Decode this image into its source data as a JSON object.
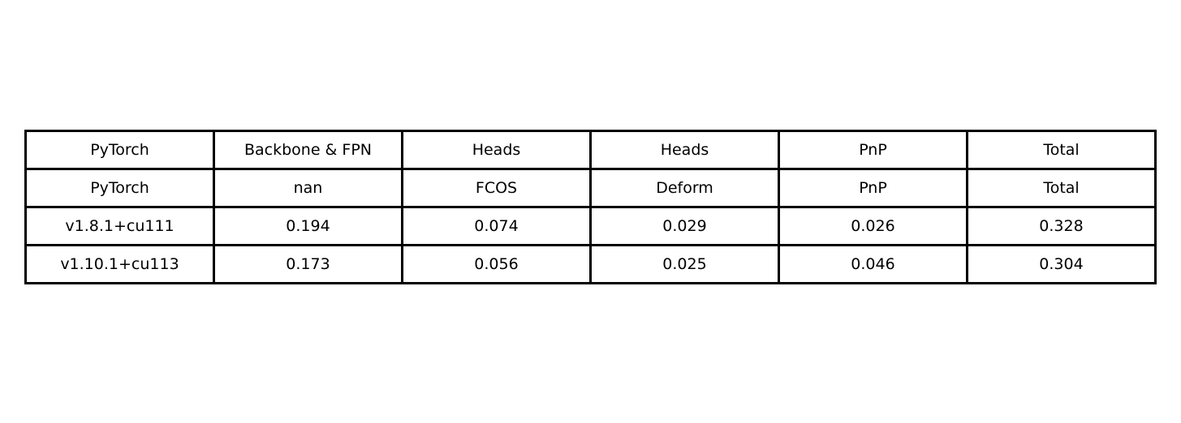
{
  "chart_data": {
    "type": "table",
    "header_rows": [
      [
        "PyTorch",
        "Backbone & FPN",
        "Heads",
        "Heads",
        "PnP",
        "Total"
      ],
      [
        "PyTorch",
        "nan",
        "FCOS",
        "Deform",
        "PnP",
        "Total"
      ]
    ],
    "rows": [
      [
        "v1.8.1+cu111",
        "0.194",
        "0.074",
        "0.029",
        "0.026",
        "0.328"
      ],
      [
        "v1.10.1+cu113",
        "0.173",
        "0.056",
        "0.025",
        "0.046",
        "0.304"
      ]
    ]
  }
}
